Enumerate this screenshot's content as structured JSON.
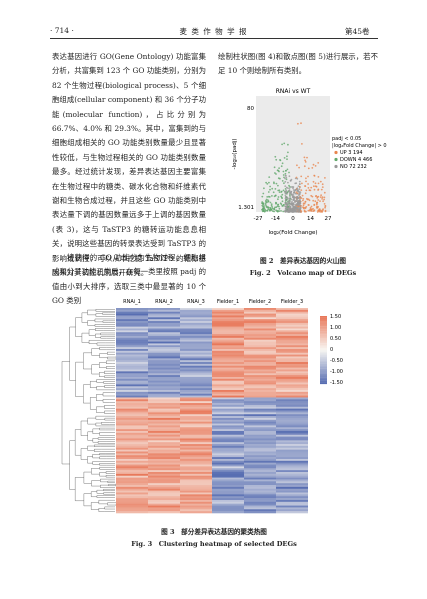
{
  "header": {
    "page": "· 714 ·",
    "journal": "麦 类 作 物 学 报",
    "volume": "第45卷"
  },
  "left_paragraphs": [
    "表达基因进行 GO(Gene Ontology) 功能富集分析，共富集到 123 个 GO 功能类别，分别为 82 个生物过程(biological process)、5 个细胞组成(cellular component) 和 36 个分子功能(molecular function)，占比分别为 66.7%、4.0% 和 29.3%。其中，富集到的与细胞组成相关的 GO 功能类别数量最少且显著性较低，与生物过程相关的 GO 功能类别数量最多。经过统计发现，差异表达基因主要富集在生物过程中的糖类、碳水化合物和纤维素代谢和生物合成过程，并且这些 GO 功能类别中表达量下调的基因数量远多于上调的基因数量(表 3)，这与 TaSTP3 的糖转运功能息息相关，说明这些基因的转录表达受到 TaSTP3 的影响或调控，可以从中挖掘 TaSTP3 的靶标基因来对其调控机制展开研究。",
    "将获得的 GO 功能分为生物过程、细胞组成和分子功能三类后，在每一类里按照 padj 的值由小到大排序，选取三类中最显著的 10 个 GO 类别"
  ],
  "right_paragraph": "绘制柱状图(图 4)和散点图(图 5)进行展示，若不足 10 个则绘制所有类别。",
  "figure2": {
    "title": "RNAi vs WT",
    "y_label": "-log₁₀(padj)",
    "x_label": "log₂(Fold Change)",
    "y_ticks": [
      "80",
      "1.301"
    ],
    "x_ticks": [
      "-27",
      "-14",
      "0",
      "14",
      "27"
    ],
    "legend": [
      "padj < 0.05",
      "|log₂Fold Change| > 0",
      "UP 3 194",
      "DOWN 4 466",
      "NO 72 232"
    ],
    "caption_cn": "图 2　差异表达基因的火山图",
    "caption_en": "Fig. 2　Volcano map of DEGs"
  },
  "figure3": {
    "columns": [
      "RNAi_1",
      "RNAi_2",
      "RNAi_3",
      "Fielder_1",
      "Fielder_2",
      "Fielder_3"
    ],
    "scale_ticks": [
      "1.50",
      "1.00",
      "0.50",
      "0",
      "-0.50",
      "-1.00",
      "-1.50"
    ],
    "caption_cn": "图 3　部分差异表达基因的聚类热图",
    "caption_en": "Fig. 3　Clustering heatmap of selected DEGs"
  }
}
